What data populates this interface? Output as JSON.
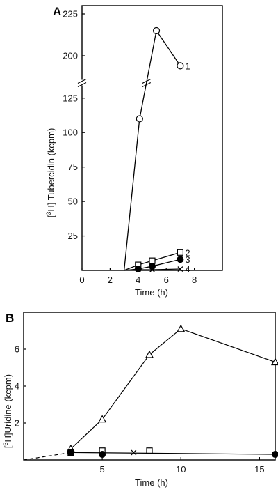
{
  "chart_data": [
    {
      "type": "line",
      "panel_label": "A",
      "xlabel": "Time (h)",
      "ylabel_parts": [
        "[",
        "3",
        "H] Tubercidin (kcpm)"
      ],
      "xlim": [
        0,
        10
      ],
      "x_ticks": [
        "0",
        "2",
        "4",
        "6",
        "8"
      ],
      "y_ticks_lower": [
        "25",
        "50",
        "75",
        "100",
        "125"
      ],
      "y_ticks_upper": [
        "200",
        "225"
      ],
      "y_break": {
        "lower_range": [
          0,
          135
        ],
        "upper_range": [
          185,
          230
        ]
      },
      "grid": false,
      "series": [
        {
          "name": "1",
          "marker": "open-circle",
          "x": [
            3,
            4.1,
            5.3,
            7
          ],
          "y": [
            0,
            110,
            215,
            194
          ]
        },
        {
          "name": "2",
          "marker": "open-square",
          "x": [
            3,
            4,
            5,
            7
          ],
          "y": [
            0,
            4,
            7,
            13
          ]
        },
        {
          "name": "3",
          "marker": "filled-circle",
          "x": [
            3,
            4,
            5,
            7
          ],
          "y": [
            0,
            1,
            3,
            8
          ]
        },
        {
          "name": "4",
          "marker": "cross",
          "x": [
            3,
            4,
            5,
            7
          ],
          "y": [
            0,
            0.5,
            0.5,
            1
          ]
        }
      ]
    },
    {
      "type": "line",
      "panel_label": "B",
      "xlabel": "Time (h)",
      "ylabel_parts": [
        "[",
        "3",
        "H]Uridine (kcpm)"
      ],
      "xlim": [
        0,
        16
      ],
      "ylim": [
        0,
        8
      ],
      "x_ticks": [
        "5",
        "10",
        "15"
      ],
      "y_ticks": [
        "2",
        "4",
        "6"
      ],
      "grid": false,
      "dashed_extrapolation": {
        "x": [
          0,
          3
        ],
        "y": [
          0,
          0.4
        ]
      },
      "series": [
        {
          "name": "",
          "marker": "open-triangle",
          "x": [
            3,
            5,
            8,
            10,
            16
          ],
          "y": [
            0.6,
            2.2,
            5.7,
            7.1,
            5.3
          ]
        },
        {
          "name": "",
          "marker": "open-square",
          "x": [
            3,
            5,
            8
          ],
          "y": [
            0.4,
            0.5,
            0.5
          ]
        },
        {
          "name": "",
          "marker": "cross",
          "x": [
            7
          ],
          "y": [
            0.4
          ]
        },
        {
          "name": "",
          "marker": "filled-circle",
          "x": [
            3,
            5,
            16
          ],
          "y": [
            0.4,
            0.3,
            0.3
          ]
        },
        {
          "name": "",
          "marker": "none",
          "x": [
            3,
            16
          ],
          "y": [
            0.4,
            0.3
          ]
        }
      ]
    }
  ]
}
